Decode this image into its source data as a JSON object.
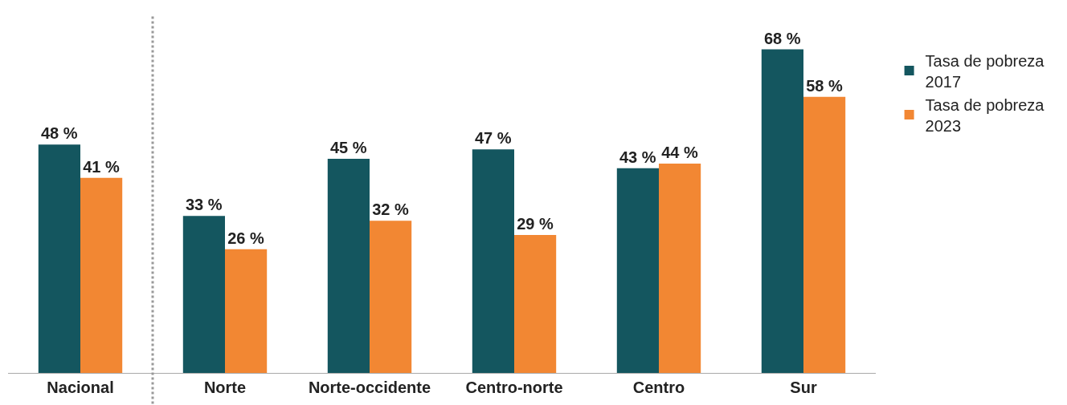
{
  "chart_data": {
    "type": "bar",
    "categories": [
      "Nacional",
      "Norte",
      "Norte-occidente",
      "Centro-norte",
      "Centro",
      "Sur"
    ],
    "series": [
      {
        "name": "Tasa de pobreza 2017",
        "color": "#14565f",
        "values": [
          48,
          33,
          45,
          47,
          43,
          68
        ],
        "value_labels": [
          "48 %",
          "33 %",
          "45 %",
          "47 %",
          "43 %",
          "68 %"
        ]
      },
      {
        "name": "Tasa de pobreza 2023",
        "color": "#f28733",
        "values": [
          41,
          26,
          32,
          29,
          44,
          58
        ],
        "value_labels": [
          "41 %",
          "26 %",
          "32 %",
          "29 %",
          "44 %",
          "58 %"
        ]
      }
    ],
    "ylim": [
      0,
      75
    ],
    "tick_labels": "x",
    "legend": "top right"
  }
}
